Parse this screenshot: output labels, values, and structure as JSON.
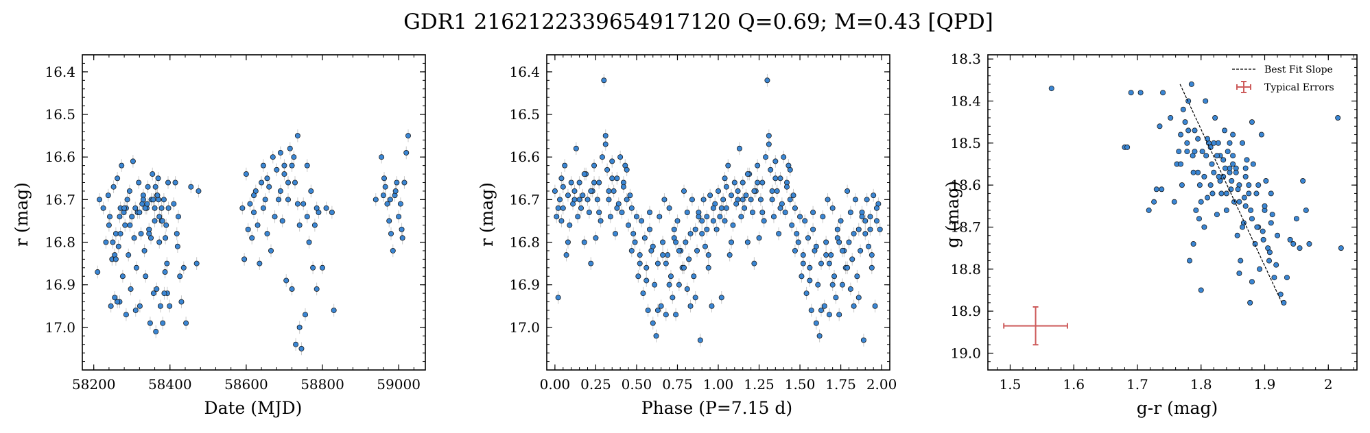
{
  "suptitle": "GDR1 2162122339654917120  Q=0.69; M=0.43 [QPD]",
  "colors": {
    "point": "#3a86d4",
    "point_edge": "#1a1a1a",
    "errorbar": "#c8c8c8",
    "fit_line": "#000000",
    "typical_error": "#cd5c5c"
  },
  "chart_data": [
    {
      "type": "scatter",
      "xlabel": "Date (MJD)",
      "ylabel": "r (mag)",
      "xlim": [
        58170,
        59070
      ],
      "ylim": [
        17.1,
        16.36
      ],
      "y_inverted": true,
      "xticks": [
        58200,
        58400,
        58600,
        58800,
        59000
      ],
      "yticks": [
        16.4,
        16.5,
        16.6,
        16.7,
        16.8,
        16.9,
        17.0
      ],
      "y_error_typical": 0.015,
      "series": [
        {
          "x": [
            58210,
            58215,
            58225,
            58232,
            58238,
            58242,
            58245,
            58248,
            58252,
            58255,
            58258,
            58262,
            58265,
            58268,
            58270,
            58273,
            58276,
            58279,
            58282,
            58285,
            58288,
            58291,
            58294,
            58297,
            58300,
            58303,
            58306,
            58309,
            58312,
            58315,
            58318,
            58321,
            58324,
            58327,
            58330,
            58333,
            58336,
            58339,
            58342,
            58345,
            58348,
            58351,
            58354,
            58357,
            58360,
            58363,
            58366,
            58369,
            58372,
            58375,
            58378,
            58381,
            58384,
            58387,
            58390,
            58393,
            58396,
            58399,
            58410,
            58414,
            58418,
            58422,
            58426,
            58430,
            58436,
            58442,
            58455,
            58470,
            58475,
            58240,
            58255,
            58262,
            58270,
            58285,
            58300,
            58310,
            58320,
            58335,
            58345,
            58350,
            58360,
            58365,
            58370,
            58372,
            58378,
            58385,
            58392,
            58250,
            58268,
            58295,
            58340,
            58356,
            58367,
            58380,
            58395,
            58420,
            58258,
            58280,
            58330,
            58362,
            58388
          ],
          "y": [
            16.87,
            16.7,
            16.72,
            16.8,
            16.69,
            16.74,
            16.95,
            16.84,
            16.67,
            16.93,
            16.78,
            16.65,
            16.81,
            16.94,
            16.72,
            16.62,
            16.88,
            16.73,
            16.76,
            16.97,
            16.7,
            16.83,
            16.68,
            16.91,
            16.74,
            16.61,
            16.79,
            16.72,
            16.86,
            16.73,
            16.66,
            16.95,
            16.78,
            16.71,
            16.69,
            16.82,
            16.88,
            16.72,
            16.67,
            16.77,
            16.99,
            16.7,
            16.64,
            16.92,
            16.75,
            17.01,
            16.69,
            16.65,
            16.8,
            16.95,
            16.72,
            16.99,
            16.7,
            16.87,
            16.76,
            16.92,
            16.72,
            16.95,
            16.71,
            16.66,
            16.78,
            16.74,
            16.88,
            16.94,
            16.86,
            16.99,
            16.67,
            16.85,
            16.68,
            16.76,
            16.83,
            16.94,
            16.78,
            16.72,
            16.74,
            16.96,
            16.73,
            16.72,
            16.78,
            16.79,
            16.72,
            16.91,
            16.7,
            16.74,
            16.75,
            16.92,
            16.85,
            16.8,
            16.74,
            16.76,
            16.71,
            16.7,
            16.69,
            16.75,
            16.66,
            16.81,
            16.84,
            16.72,
            16.7,
            16.67,
            16.79
          ]
        },
        {
          "x": [
            58590,
            58595,
            58600,
            58605,
            58610,
            58615,
            58620,
            58625,
            58630,
            58635,
            58640,
            58645,
            58650,
            58655,
            58660,
            58665,
            58670,
            58675,
            58680,
            58685,
            58690,
            58695,
            58700,
            58705,
            58710,
            58715,
            58720,
            58725,
            58730,
            58735,
            58740,
            58745,
            58750,
            58755,
            58760,
            58765,
            58770,
            58775,
            58780,
            58785,
            58790,
            58800,
            58810,
            58825,
            58830,
            58620,
            58645,
            58655,
            58690,
            58700,
            58710,
            58720,
            58728,
            58735,
            58740,
            58760,
            58785
          ],
          "y": [
            16.72,
            16.84,
            16.64,
            16.77,
            16.71,
            16.79,
            16.73,
            16.68,
            16.76,
            16.85,
            16.66,
            16.62,
            16.7,
            16.78,
            16.67,
            16.82,
            16.6,
            16.74,
            16.63,
            16.7,
            16.59,
            16.75,
            16.62,
            16.89,
            16.66,
            16.58,
            16.91,
            16.6,
            17.04,
            16.55,
            16.76,
            17.05,
            16.71,
            16.97,
            16.62,
            16.8,
            16.68,
            16.86,
            16.76,
            16.91,
            16.73,
            16.86,
            16.72,
            16.73,
            16.96,
            16.69,
            16.72,
            16.65,
            16.68,
            16.64,
            16.7,
            16.62,
            16.66,
            16.71,
            17.0,
            16.74,
            16.72
          ]
        },
        {
          "x": [
            58940,
            58955,
            58960,
            58965,
            58970,
            58975,
            58980,
            58985,
            58990,
            58995,
            59000,
            59005,
            59010,
            59015,
            59020,
            59025,
            58962,
            58978,
            58992,
            59008
          ],
          "y": [
            16.7,
            16.6,
            16.69,
            16.67,
            16.71,
            16.75,
            16.78,
            16.82,
            16.69,
            16.66,
            16.74,
            16.71,
            16.79,
            16.66,
            16.59,
            16.55,
            16.65,
            16.7,
            16.68,
            16.77
          ]
        }
      ]
    },
    {
      "type": "scatter",
      "xlabel": "Phase (P=7.15 d)",
      "ylabel": "r (mag)",
      "xlim": [
        -0.05,
        2.05
      ],
      "ylim": [
        17.1,
        16.36
      ],
      "y_inverted": true,
      "xticks": [
        0.0,
        0.25,
        0.5,
        0.75,
        1.0,
        1.25,
        1.5,
        1.75,
        2.0
      ],
      "xtick_labels": [
        "0.00",
        "0.25",
        "0.50",
        "0.75",
        "1.00",
        "1.25",
        "1.50",
        "1.75",
        "2.00"
      ],
      "yticks": [
        16.4,
        16.5,
        16.6,
        16.7,
        16.8,
        16.9,
        17.0
      ],
      "y_error_typical": 0.015,
      "phase_folded_duplicate": true,
      "series": [
        {
          "phase": [
            0.0,
            0.01,
            0.02,
            0.03,
            0.04,
            0.05,
            0.06,
            0.07,
            0.08,
            0.09,
            0.1,
            0.11,
            0.12,
            0.13,
            0.14,
            0.15,
            0.16,
            0.17,
            0.18,
            0.19,
            0.2,
            0.21,
            0.22,
            0.23,
            0.24,
            0.25,
            0.26,
            0.27,
            0.28,
            0.29,
            0.3,
            0.31,
            0.32,
            0.33,
            0.34,
            0.35,
            0.36,
            0.37,
            0.38,
            0.39,
            0.4,
            0.41,
            0.42,
            0.43,
            0.44,
            0.45,
            0.46,
            0.47,
            0.48,
            0.49,
            0.5,
            0.51,
            0.52,
            0.53,
            0.54,
            0.55,
            0.56,
            0.57,
            0.58,
            0.59,
            0.6,
            0.61,
            0.62,
            0.63,
            0.64,
            0.65,
            0.66,
            0.67,
            0.68,
            0.69,
            0.7,
            0.71,
            0.72,
            0.73,
            0.74,
            0.75,
            0.76,
            0.77,
            0.78,
            0.79,
            0.8,
            0.81,
            0.82,
            0.83,
            0.84,
            0.85,
            0.86,
            0.87,
            0.88,
            0.89,
            0.9,
            0.91,
            0.92,
            0.93,
            0.94,
            0.95,
            0.96,
            0.97,
            0.98,
            0.99,
            0.02,
            0.05,
            0.08,
            0.12,
            0.18,
            0.22,
            0.27,
            0.31,
            0.35,
            0.38,
            0.42,
            0.47,
            0.52,
            0.56,
            0.6,
            0.63,
            0.66,
            0.7,
            0.73,
            0.76,
            0.79,
            0.83,
            0.86,
            0.9,
            0.94,
            0.97,
            0.04,
            0.15,
            0.24,
            0.33,
            0.44,
            0.58,
            0.68,
            0.74,
            0.81,
            0.88,
            0.93
          ],
          "mag": [
            16.68,
            16.74,
            16.93,
            16.7,
            16.65,
            16.72,
            16.62,
            16.83,
            16.69,
            16.76,
            16.66,
            16.71,
            16.68,
            16.58,
            16.74,
            16.66,
            16.72,
            16.69,
            16.8,
            16.64,
            16.7,
            16.73,
            16.85,
            16.68,
            16.62,
            16.79,
            16.7,
            16.66,
            16.75,
            16.6,
            16.42,
            16.57,
            16.63,
            16.7,
            16.74,
            16.61,
            16.68,
            16.78,
            16.65,
            16.71,
            16.6,
            16.73,
            16.66,
            16.62,
            16.7,
            16.76,
            16.69,
            16.72,
            16.78,
            16.8,
            16.74,
            16.88,
            16.83,
            16.75,
            16.92,
            16.79,
            16.86,
            16.96,
            16.77,
            16.82,
            16.99,
            16.9,
            17.02,
            16.85,
            16.74,
            16.95,
            16.8,
            16.7,
            16.97,
            16.83,
            16.72,
            16.88,
            16.93,
            16.79,
            16.97,
            16.75,
            16.9,
            16.82,
            16.86,
            16.68,
            16.8,
            16.73,
            16.84,
            16.95,
            16.7,
            16.88,
            16.77,
            16.82,
            16.73,
            17.03,
            16.78,
            16.7,
            16.81,
            16.74,
            16.86,
            16.69,
            16.95,
            16.75,
            16.71,
            16.77,
            16.72,
            16.67,
            16.8,
            16.7,
            16.64,
            16.68,
            16.73,
            16.55,
            16.65,
            16.72,
            16.67,
            16.82,
            16.85,
            16.89,
            16.81,
            16.96,
            16.83,
            16.9,
            16.77,
            16.82,
            16.86,
            16.78,
            16.93,
            16.75,
            16.83,
            16.72,
            16.75,
            16.7,
            16.66,
            16.68,
            16.63,
            16.73,
            16.85,
            16.8,
            16.91,
            16.74,
            16.77
          ]
        }
      ]
    },
    {
      "type": "scatter",
      "xlabel": "g-r (mag)",
      "ylabel": "g (mag)",
      "xlim": [
        1.465,
        2.045
      ],
      "ylim": [
        19.04,
        18.29
      ],
      "y_inverted": true,
      "xticks": [
        1.5,
        1.6,
        1.7,
        1.8,
        1.9,
        2.0
      ],
      "yticks": [
        18.3,
        18.4,
        18.5,
        18.6,
        18.7,
        18.8,
        18.9,
        19.0
      ],
      "legend": {
        "position": "top-right",
        "entries": [
          "Best Fit Slope",
          "Typical Errors"
        ]
      },
      "best_fit_line": {
        "x": [
          1.767,
          1.927
        ],
        "y": [
          18.36,
          18.88
        ]
      },
      "typical_errors": {
        "x": 1.54,
        "y": 18.935,
        "xerr": 0.05,
        "yerr": 0.045
      },
      "series": [
        {
          "x": [
            1.565,
            1.68,
            1.684,
            1.69,
            1.705,
            1.718,
            1.726,
            1.73,
            1.735,
            1.738,
            1.74,
            1.752,
            1.758,
            1.762,
            1.765,
            1.768,
            1.77,
            1.772,
            1.775,
            1.778,
            1.78,
            1.782,
            1.785,
            1.787,
            1.788,
            1.79,
            1.792,
            1.795,
            1.797,
            1.8,
            1.802,
            1.805,
            1.807,
            1.81,
            1.812,
            1.815,
            1.817,
            1.82,
            1.822,
            1.825,
            1.827,
            1.83,
            1.832,
            1.835,
            1.837,
            1.84,
            1.842,
            1.845,
            1.847,
            1.85,
            1.852,
            1.855,
            1.857,
            1.86,
            1.862,
            1.865,
            1.867,
            1.87,
            1.872,
            1.875,
            1.877,
            1.88,
            1.882,
            1.885,
            1.887,
            1.89,
            1.892,
            1.895,
            1.897,
            1.9,
            1.902,
            1.905,
            1.907,
            1.91,
            1.912,
            1.915,
            1.92,
            1.925,
            1.93,
            1.935,
            1.94,
            1.945,
            1.95,
            1.955,
            1.96,
            1.965,
            1.97,
            2.015,
            2.02,
            1.88,
            1.86,
            1.845,
            1.83,
            1.82,
            1.81,
            1.8,
            1.79,
            1.78,
            1.86,
            1.87,
            1.875,
            1.855,
            1.85,
            1.84,
            1.835,
            1.825,
            1.815,
            1.805,
            1.795,
            1.865,
            1.845,
            1.88,
            1.89,
            1.9,
            1.91,
            1.87,
            1.85,
            1.838,
            1.828,
            1.818,
            1.808,
            1.798,
            1.788,
            1.778,
            1.768,
            1.848,
            1.858,
            1.868,
            1.878,
            1.888,
            1.898,
            1.908,
            1.918
          ],
          "y": [
            18.37,
            18.51,
            18.51,
            18.38,
            18.38,
            18.66,
            18.64,
            18.61,
            18.46,
            18.61,
            18.38,
            18.44,
            18.64,
            18.55,
            18.52,
            18.48,
            18.6,
            18.42,
            18.45,
            18.5,
            18.4,
            18.78,
            18.36,
            18.53,
            18.74,
            18.47,
            18.66,
            18.49,
            18.68,
            18.85,
            18.52,
            18.58,
            18.4,
            18.63,
            18.5,
            18.6,
            18.55,
            18.57,
            18.44,
            18.67,
            18.5,
            18.59,
            18.62,
            18.54,
            18.47,
            18.66,
            18.52,
            18.57,
            18.61,
            18.48,
            18.64,
            18.56,
            18.72,
            18.6,
            18.78,
            18.5,
            18.69,
            18.65,
            18.54,
            18.62,
            18.88,
            18.68,
            18.55,
            18.74,
            18.62,
            18.7,
            18.8,
            18.48,
            18.71,
            18.66,
            18.59,
            18.75,
            18.78,
            18.62,
            18.67,
            18.82,
            18.72,
            18.86,
            18.88,
            18.82,
            18.73,
            18.74,
            18.68,
            18.75,
            18.59,
            18.66,
            18.74,
            18.44,
            18.75,
            18.83,
            18.81,
            18.56,
            18.53,
            18.5,
            18.49,
            18.64,
            18.52,
            18.47,
            18.64,
            18.56,
            18.6,
            18.57,
            18.55,
            18.62,
            18.58,
            18.53,
            18.51,
            18.7,
            18.57,
            18.7,
            18.5,
            18.45,
            18.6,
            18.65,
            18.69,
            18.58,
            18.53,
            18.56,
            18.58,
            18.62,
            18.53,
            18.6,
            18.57,
            18.52,
            18.55,
            18.59,
            18.61,
            18.63,
            18.66,
            18.7,
            18.73,
            18.76,
            18.79
          ]
        }
      ]
    }
  ]
}
